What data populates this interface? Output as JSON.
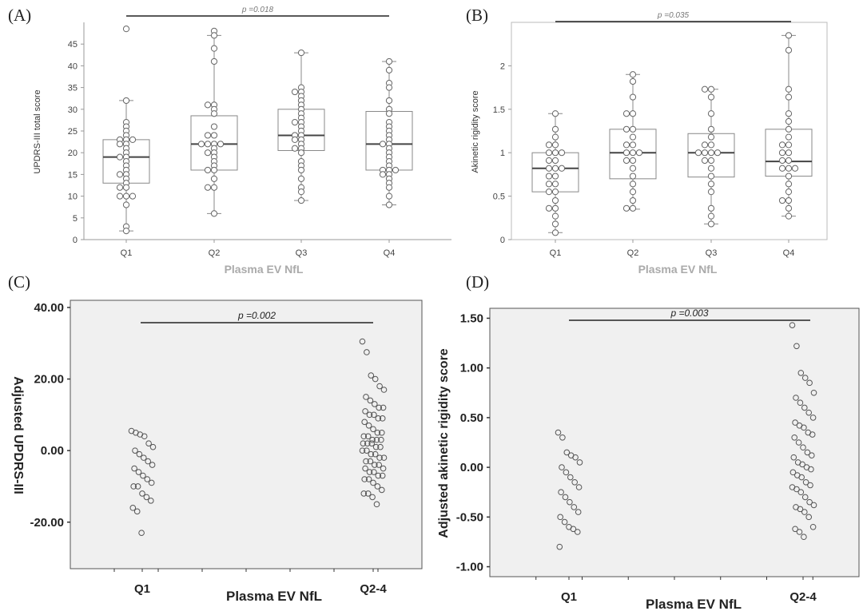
{
  "chart_data": [
    {
      "panel": "(A)",
      "type": "box",
      "xlabel": "Plasma EV NfL",
      "ylabel": "UPDRS-III total score",
      "ylim": [
        0,
        50
      ],
      "yticks": [
        "0",
        "5",
        "10",
        "15",
        "20",
        "25",
        "30",
        "35",
        "40",
        "45"
      ],
      "categories": [
        "Q1",
        "Q2",
        "Q3",
        "Q4"
      ],
      "annotation": "p =0.018",
      "boxes": [
        {
          "min": 2,
          "q1": 13,
          "median": 19,
          "q3": 23,
          "max": 32
        },
        {
          "min": 6,
          "q1": 16,
          "median": 22,
          "q3": 28.5,
          "max": 47
        },
        {
          "min": 9,
          "q1": 20.5,
          "median": 24,
          "q3": 30,
          "max": 43
        },
        {
          "min": 8,
          "q1": 16,
          "median": 22,
          "q3": 29.5,
          "max": 41
        }
      ],
      "points": [
        [
          48.5,
          32,
          27,
          26,
          25,
          24,
          23,
          23,
          23,
          22,
          22,
          21,
          20,
          19,
          19,
          18,
          17,
          16,
          15,
          15,
          14,
          13,
          12,
          12,
          10,
          10,
          10,
          8,
          3,
          2
        ],
        [
          48,
          47,
          44,
          41,
          31,
          31,
          30,
          29,
          26,
          24,
          24,
          22,
          22,
          22,
          22,
          21,
          20,
          20,
          19,
          18,
          17,
          16,
          16,
          14,
          12,
          12,
          6
        ],
        [
          43,
          35,
          34,
          34,
          33,
          32,
          31,
          30,
          29,
          28,
          27,
          27,
          26,
          25,
          24,
          24,
          23,
          23,
          22,
          21,
          21,
          20,
          18,
          17,
          16,
          14,
          12,
          11,
          9
        ],
        [
          41,
          39,
          36,
          35,
          32,
          30,
          29,
          27,
          26,
          25,
          24,
          23,
          22,
          22,
          21,
          20,
          19,
          18,
          17,
          16,
          16,
          16,
          15,
          15,
          14,
          13,
          12,
          10,
          8
        ]
      ],
      "colors": {
        "box": "#888888",
        "point": "#666666"
      }
    },
    {
      "panel": "(B)",
      "type": "box",
      "xlabel": "Plasma EV NfL",
      "ylabel": "Akinetic rigidity score",
      "ylim": [
        0,
        2.5
      ],
      "yticks": [
        "0",
        "0.5",
        "1",
        "1.5",
        "2"
      ],
      "categories": [
        "Q1",
        "Q2",
        "Q3",
        "Q4"
      ],
      "annotation": "p =0.035",
      "boxes": [
        {
          "min": 0.08,
          "q1": 0.55,
          "median": 0.82,
          "q3": 1.0,
          "max": 1.45
        },
        {
          "min": 0.35,
          "q1": 0.7,
          "median": 1.0,
          "q3": 1.27,
          "max": 1.9
        },
        {
          "min": 0.18,
          "q1": 0.72,
          "median": 1.0,
          "q3": 1.22,
          "max": 1.73
        },
        {
          "min": 0.27,
          "q1": 0.73,
          "median": 0.9,
          "q3": 1.27,
          "max": 2.35
        }
      ],
      "points": [
        [
          1.45,
          1.27,
          1.18,
          1.09,
          1.09,
          1.0,
          1.0,
          1.0,
          0.91,
          0.91,
          0.82,
          0.82,
          0.82,
          0.73,
          0.73,
          0.64,
          0.64,
          0.55,
          0.55,
          0.45,
          0.36,
          0.36,
          0.27,
          0.18,
          0.08
        ],
        [
          1.9,
          1.82,
          1.64,
          1.45,
          1.45,
          1.27,
          1.27,
          1.18,
          1.09,
          1.09,
          1.0,
          1.0,
          1.0,
          0.91,
          0.91,
          0.82,
          0.73,
          0.64,
          0.55,
          0.45,
          0.36,
          0.36
        ],
        [
          1.73,
          1.73,
          1.64,
          1.45,
          1.27,
          1.18,
          1.09,
          1.09,
          1.0,
          1.0,
          1.0,
          1.0,
          0.91,
          0.91,
          0.82,
          0.73,
          0.64,
          0.55,
          0.36,
          0.27,
          0.18
        ],
        [
          2.35,
          2.18,
          1.73,
          1.64,
          1.45,
          1.36,
          1.27,
          1.18,
          1.09,
          1.09,
          1.0,
          1.0,
          0.91,
          0.91,
          0.82,
          0.82,
          0.82,
          0.73,
          0.64,
          0.55,
          0.45,
          0.45,
          0.36,
          0.27
        ]
      ],
      "colors": {
        "box": "#888888",
        "point": "#666666"
      }
    },
    {
      "panel": "(C)",
      "type": "scatter",
      "xlabel": "Plasma EV NfL",
      "ylabel": "Adjusted UPDRS-III",
      "ylim": [
        -33,
        42
      ],
      "yticks": [
        "40.00",
        "20.00",
        "0.00",
        "-20.00"
      ],
      "categories": [
        "Q1",
        "Q2-4"
      ],
      "annotation": "p =0.002",
      "points": [
        [
          5.5,
          5,
          4.5,
          4,
          2,
          1,
          0,
          -1,
          -2,
          -3,
          -4,
          -5,
          -6,
          -7,
          -8,
          -9,
          -10,
          -10,
          -12,
          -13,
          -14,
          -16,
          -17,
          -23
        ],
        [
          30.5,
          27.5,
          21,
          20,
          18,
          17,
          15,
          14,
          13,
          12,
          12,
          11,
          10,
          10,
          9,
          9,
          8,
          7,
          6,
          5,
          5,
          4,
          4,
          3,
          3,
          3,
          2,
          2,
          2,
          1,
          1,
          0,
          0,
          -1,
          -1,
          -2,
          -2,
          -3,
          -3,
          -4,
          -4,
          -5,
          -5,
          -6,
          -6,
          -7,
          -7,
          -8,
          -8,
          -9,
          -10,
          -11,
          -12,
          -12,
          -13,
          -15
        ]
      ],
      "colors": {
        "panel_bg": "#f0f0f0",
        "point": "#555555"
      }
    },
    {
      "panel": "(D)",
      "type": "scatter",
      "xlabel": "Plasma EV NfL",
      "ylabel": "Adjusted akinetic rigidity score",
      "ylim": [
        -1.1,
        1.6
      ],
      "yticks": [
        "1.50",
        "1.00",
        "0.50",
        "0.00",
        "-0.50",
        "-1.00"
      ],
      "categories": [
        "Q1",
        "Q2-4"
      ],
      "annotation": "p =0.003",
      "points": [
        [
          0.35,
          0.3,
          0.15,
          0.12,
          0.1,
          0.05,
          0.0,
          -0.05,
          -0.1,
          -0.15,
          -0.2,
          -0.25,
          -0.3,
          -0.35,
          -0.4,
          -0.45,
          -0.5,
          -0.55,
          -0.6,
          -0.62,
          -0.65,
          -0.8
        ],
        [
          1.43,
          1.22,
          0.95,
          0.9,
          0.85,
          0.75,
          0.7,
          0.65,
          0.6,
          0.55,
          0.5,
          0.45,
          0.42,
          0.4,
          0.35,
          0.33,
          0.3,
          0.25,
          0.2,
          0.15,
          0.12,
          0.1,
          0.05,
          0.03,
          0.0,
          -0.02,
          -0.05,
          -0.08,
          -0.1,
          -0.15,
          -0.18,
          -0.2,
          -0.22,
          -0.25,
          -0.3,
          -0.35,
          -0.38,
          -0.4,
          -0.42,
          -0.45,
          -0.5,
          -0.6,
          -0.62,
          -0.65,
          -0.7
        ]
      ],
      "colors": {
        "panel_bg": "#f0f0f0",
        "point": "#555555"
      }
    }
  ]
}
